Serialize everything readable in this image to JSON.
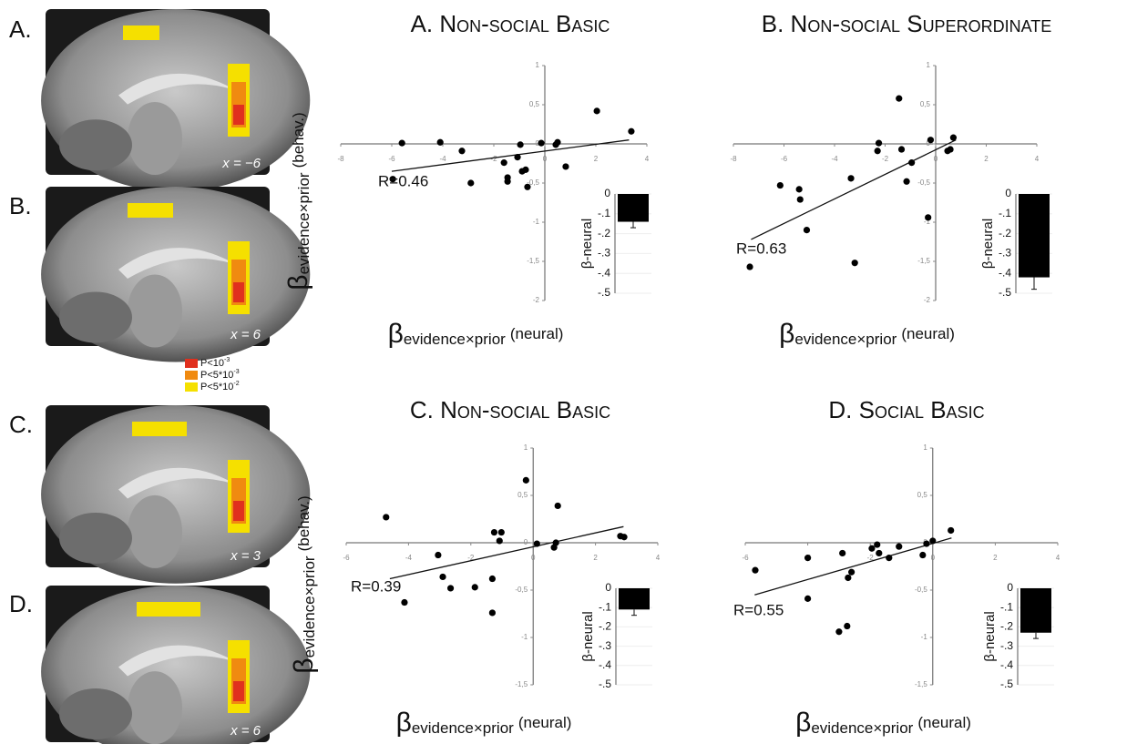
{
  "brain_panels": [
    {
      "label": "A.",
      "coordinate": "x = −6"
    },
    {
      "label": "B.",
      "coordinate": "x = 6"
    },
    {
      "label": "C.",
      "coordinate": "x = 3"
    },
    {
      "label": "D.",
      "coordinate": "x = 6"
    }
  ],
  "significance_legend": [
    {
      "text": "P<10",
      "exponent": "-3",
      "color": "#e0301e"
    },
    {
      "text": "P<5*10",
      "exponent": "-3",
      "color": "#f08a10"
    },
    {
      "text": "P<5*10",
      "exponent": "-2",
      "color": "#f5e000"
    }
  ],
  "chart_data": [
    {
      "type": "scatter",
      "title": "A. Non-social Basic",
      "y_label": {
        "symbol": "β",
        "subscript": "evidence×prior",
        "unit": "(behav.)"
      },
      "x_label": {
        "symbol": "β",
        "subscript": "evidence×prior",
        "unit": "(neural)"
      },
      "x": [
        -5.6,
        -4.1,
        -3.25,
        -5.96,
        -2.9,
        -1.6,
        -1.46,
        -1.46,
        -1.07,
        -0.96,
        -0.89,
        -0.75,
        -0.68,
        -0.14,
        0.43,
        0.5,
        0.82,
        2.04,
        3.39
      ],
      "values": [
        0.01,
        0.02,
        -0.09,
        -0.45,
        -0.5,
        -0.24,
        -0.43,
        -0.48,
        -0.17,
        -0.01,
        -0.35,
        -0.33,
        -0.55,
        0.01,
        -0.01,
        0.02,
        -0.29,
        0.42,
        0.16
      ],
      "color": "#000000",
      "fit_line": {
        "x": [
          -6,
          3.3
        ],
        "y": [
          -0.35,
          0.05
        ]
      },
      "annotation": "R=0.46",
      "xlim": [
        -8,
        4
      ],
      "ylim": [
        -2,
        1
      ],
      "xticks": [
        -8,
        -6,
        -4,
        -2,
        0,
        2,
        4
      ],
      "yticks": [
        -2,
        {
          "value": -1.5,
          "label": "-1,5"
        },
        -1,
        {
          "value": -0.5,
          "label": "-0,5"
        },
        0,
        {
          "value": 0.5,
          "label": "0,5"
        },
        1
      ],
      "inset": {
        "type": "bar",
        "y_label": "β-neural",
        "value": -0.14,
        "error": 0.03,
        "ylim": [
          -0.5,
          0
        ],
        "yticks": [
          0,
          {
            "value": -0.1,
            "label": "-.1"
          },
          {
            "value": -0.2,
            "label": "-.2"
          },
          {
            "value": -0.3,
            "label": "-.3"
          },
          {
            "value": -0.4,
            "label": "-.4"
          },
          {
            "value": -0.5,
            "label": "-.5"
          }
        ]
      }
    },
    {
      "type": "scatter",
      "title": "B. Non-social Superordinate",
      "x_label": {
        "symbol": "β",
        "subscript": "evidence×prior",
        "unit": "(neural)"
      },
      "x": [
        -7.35,
        -6.15,
        -5.4,
        -5.36,
        -5.1,
        -3.2,
        -3.35,
        -2.3,
        -2.25,
        -1.45,
        -1.35,
        -0.95,
        -1.15,
        -0.3,
        -0.2,
        0.47,
        0.58,
        0.7
      ],
      "values": [
        -1.57,
        -0.53,
        -0.58,
        -0.71,
        -1.1,
        -1.52,
        -0.44,
        -0.09,
        0.01,
        0.58,
        -0.07,
        -0.24,
        -0.48,
        -0.94,
        0.05,
        -0.09,
        -0.07,
        0.08
      ],
      "color": "#000000",
      "fit_line": {
        "x": [
          -7.3,
          0.8
        ],
        "y": [
          -1.22,
          0.05
        ]
      },
      "annotation": "R=0.63",
      "xlim": [
        -8,
        4
      ],
      "ylim": [
        -2,
        1
      ],
      "xticks": [
        -8,
        -6,
        -4,
        -2,
        0,
        2,
        4
      ],
      "yticks": [
        -2,
        {
          "value": -1.5,
          "label": "-1,5"
        },
        -1,
        {
          "value": -0.5,
          "label": "-0,5"
        },
        0,
        {
          "value": 0.5,
          "label": "0,5"
        },
        1
      ],
      "inset": {
        "type": "bar",
        "y_label": "β-neural",
        "value": -0.42,
        "error": 0.06,
        "ylim": [
          -0.5,
          0
        ],
        "yticks": [
          0,
          {
            "value": -0.1,
            "label": "-.1"
          },
          {
            "value": -0.2,
            "label": "-.2"
          },
          {
            "value": -0.3,
            "label": "-.3"
          },
          {
            "value": -0.4,
            "label": "-.4"
          },
          {
            "value": -0.5,
            "label": "-.5"
          }
        ]
      }
    },
    {
      "type": "scatter",
      "title": "C. Non-social Basic",
      "y_label": {
        "symbol": "β",
        "subscript": "evidence×prior",
        "unit": "(behav.)"
      },
      "x_label": {
        "symbol": "β",
        "subscript": "evidence×prior",
        "unit": "(neural)"
      },
      "x": [
        -4.72,
        -4.13,
        -3.05,
        -2.9,
        -2.65,
        -1.87,
        -1.31,
        -1.31,
        -1.25,
        -1.02,
        -1.08,
        -0.23,
        0.12,
        0.67,
        0.73,
        0.79,
        2.8,
        2.92
      ],
      "values": [
        0.27,
        -0.63,
        -0.13,
        -0.36,
        -0.48,
        -0.47,
        -0.38,
        -0.74,
        0.11,
        0.11,
        0.02,
        0.66,
        -0.01,
        -0.05,
        0,
        0.39,
        0.07,
        0.06
      ],
      "color": "#000000",
      "fit_line": {
        "x": [
          -4.6,
          2.9
        ],
        "y": [
          -0.38,
          0.17
        ]
      },
      "annotation": "R=0.39",
      "xlim": [
        -6,
        4
      ],
      "ylim": [
        -1.5,
        1
      ],
      "xticks": [
        -6,
        -4,
        -2,
        0,
        2,
        4
      ],
      "yticks": [
        {
          "value": -1.5,
          "label": "-1,5"
        },
        -1,
        {
          "value": -0.5,
          "label": "-0,5"
        },
        0,
        {
          "value": 0.5,
          "label": "0,5"
        },
        1
      ],
      "inset": {
        "type": "bar",
        "y_label": "β-neural",
        "value": -0.11,
        "error": 0.03,
        "ylim": [
          -0.5,
          0
        ],
        "yticks": [
          0,
          {
            "value": -0.1,
            "label": "-.1"
          },
          {
            "value": -0.2,
            "label": "-.2"
          },
          {
            "value": -0.3,
            "label": "-.3"
          },
          {
            "value": -0.4,
            "label": "-.4"
          },
          {
            "value": -0.5,
            "label": "-.5"
          }
        ]
      }
    },
    {
      "type": "scatter",
      "title": "D. Social Basic",
      "x_label": {
        "symbol": "β",
        "subscript": "evidence×prior",
        "unit": "(neural)"
      },
      "x": [
        -5.68,
        -4,
        -4,
        -2.89,
        -2.71,
        -2.6,
        -3,
        -2.74,
        -1.95,
        -1.78,
        -1.72,
        -1.4,
        -1.08,
        -0.32,
        -0.2,
        0,
        0.58
      ],
      "values": [
        -0.29,
        -0.16,
        -0.59,
        -0.11,
        -0.37,
        -0.31,
        -0.94,
        -0.88,
        -0.06,
        -0.02,
        -0.11,
        -0.16,
        -0.04,
        -0.13,
        -0.01,
        0.02,
        0.13
      ],
      "color": "#000000",
      "fit_line": {
        "x": [
          -5.7,
          0.6
        ],
        "y": [
          -0.55,
          0.05
        ]
      },
      "annotation": "R=0.55",
      "xlim": [
        -6,
        4
      ],
      "ylim": [
        -1.5,
        1
      ],
      "xticks": [
        -6,
        -4,
        -2,
        0,
        2,
        4
      ],
      "yticks": [
        {
          "value": -1.5,
          "label": "-1,5"
        },
        -1,
        {
          "value": -0.5,
          "label": "-0,5"
        },
        0,
        {
          "value": 0.5,
          "label": "0,5"
        },
        1
      ],
      "inset": {
        "type": "bar",
        "y_label": "β-neural",
        "value": -0.23,
        "error": 0.03,
        "ylim": [
          -0.5,
          0
        ],
        "yticks": [
          0,
          {
            "value": -0.1,
            "label": "-.1"
          },
          {
            "value": -0.2,
            "label": "-.2"
          },
          {
            "value": -0.3,
            "label": "-.3"
          },
          {
            "value": -0.4,
            "label": "-.4"
          },
          {
            "value": -0.5,
            "label": "-.5"
          }
        ]
      }
    }
  ]
}
